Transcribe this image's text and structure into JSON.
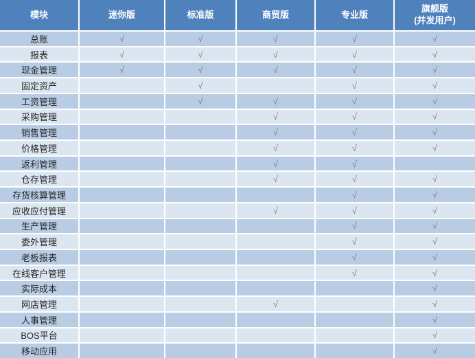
{
  "table": {
    "check_mark": "√",
    "columns": [
      {
        "id": "module",
        "label": "模块",
        "sublabel": ""
      },
      {
        "id": "mini",
        "label": "迷你版",
        "sublabel": ""
      },
      {
        "id": "standard",
        "label": "标准版",
        "sublabel": ""
      },
      {
        "id": "trade",
        "label": "商贸版",
        "sublabel": ""
      },
      {
        "id": "pro",
        "label": "专业版",
        "sublabel": ""
      },
      {
        "id": "flagship",
        "label": "旗舰版",
        "sublabel": "(并发用户)"
      }
    ],
    "rows": [
      {
        "module": "总账",
        "checks": [
          true,
          true,
          true,
          true,
          true
        ]
      },
      {
        "module": "报表",
        "checks": [
          true,
          true,
          true,
          true,
          true
        ]
      },
      {
        "module": "现金管理",
        "checks": [
          true,
          true,
          true,
          true,
          true
        ]
      },
      {
        "module": "固定资产",
        "checks": [
          false,
          true,
          false,
          true,
          true
        ]
      },
      {
        "module": "工资管理",
        "checks": [
          false,
          true,
          true,
          true,
          true
        ]
      },
      {
        "module": "采购管理",
        "checks": [
          false,
          false,
          true,
          true,
          true
        ]
      },
      {
        "module": "销售管理",
        "checks": [
          false,
          false,
          true,
          true,
          true
        ]
      },
      {
        "module": "价格管理",
        "checks": [
          false,
          false,
          true,
          true,
          true
        ]
      },
      {
        "module": "返利管理",
        "checks": [
          false,
          false,
          true,
          true,
          false
        ]
      },
      {
        "module": "仓存管理",
        "checks": [
          false,
          false,
          true,
          true,
          true
        ]
      },
      {
        "module": "存货核算管理",
        "checks": [
          false,
          false,
          false,
          true,
          true
        ]
      },
      {
        "module": "应收应付管理",
        "checks": [
          false,
          false,
          true,
          true,
          true
        ]
      },
      {
        "module": "生产管理",
        "checks": [
          false,
          false,
          false,
          true,
          true
        ]
      },
      {
        "module": "委外管理",
        "checks": [
          false,
          false,
          false,
          true,
          true
        ]
      },
      {
        "module": "老板报表",
        "checks": [
          false,
          false,
          false,
          true,
          true
        ]
      },
      {
        "module": "在线客户管理",
        "checks": [
          false,
          false,
          false,
          true,
          true
        ]
      },
      {
        "module": "实际成本",
        "checks": [
          false,
          false,
          false,
          false,
          true
        ]
      },
      {
        "module": "网店管理",
        "checks": [
          false,
          false,
          true,
          false,
          true
        ]
      },
      {
        "module": "人事管理",
        "checks": [
          false,
          false,
          false,
          false,
          true
        ]
      },
      {
        "module": "BOS平台",
        "checks": [
          false,
          false,
          false,
          false,
          true
        ]
      },
      {
        "module": "移动应用",
        "checks": [
          false,
          false,
          false,
          false,
          true
        ]
      }
    ]
  },
  "colors": {
    "header_bg": "#4f81bd",
    "header_text": "#ffffff",
    "row_odd_bg": "#b8cce4",
    "row_even_bg": "#dce6f1",
    "check_color": "#7f7f7f",
    "module_text": "#262626",
    "grid_line": "#ffffff"
  }
}
